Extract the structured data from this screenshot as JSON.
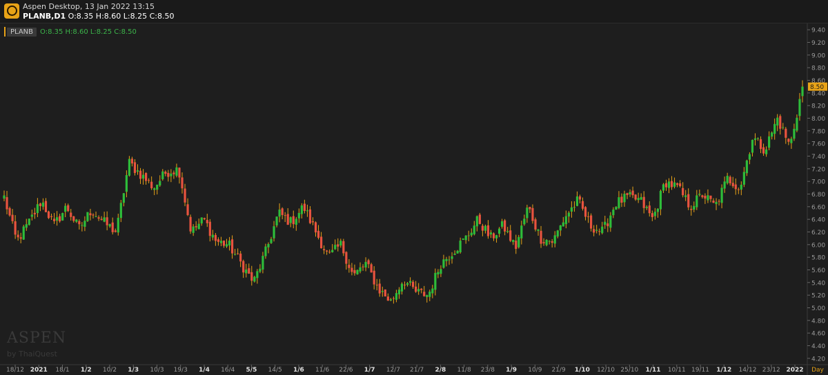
{
  "header": {
    "app_title": "Aspen Desktop, 13 Jan 2022 13:15",
    "symbol_timeframe": "PLANB,D1",
    "ohlc_text": "O:8.35 H:8.60 L:8.25 C:8.50"
  },
  "legend": {
    "symbol": "PLANB",
    "values": "O:8.35  H:8.60  L:8.25  C:8.50"
  },
  "watermark": {
    "main": "ASPEN",
    "sub": "by ThaiQuest"
  },
  "colors": {
    "up": "#2ebd3a",
    "down": "#e8533f",
    "wick": "#e8a317",
    "grid": "#2a2a2a",
    "axis_text": "#9a9a9a",
    "price_tag": "#e8a317",
    "background": "#1e1e1e"
  },
  "chart_data": {
    "type": "candlestick",
    "ylim": [
      4.1,
      9.5
    ],
    "y_ticks": [
      "4.20",
      "4.40",
      "4.60",
      "4.80",
      "5.00",
      "5.20",
      "5.40",
      "5.60",
      "5.80",
      "6.00",
      "6.20",
      "6.40",
      "6.60",
      "6.80",
      "7.00",
      "7.20",
      "7.40",
      "7.60",
      "7.80",
      "8.00",
      "8.20",
      "8.40",
      "8.60",
      "8.80",
      "9.00",
      "9.20",
      "9.40"
    ],
    "x_labels": [
      "18/12",
      "2021",
      "18/1",
      "1/2",
      "10/2",
      "1/3",
      "10/3",
      "19/3",
      "1/4",
      "16/4",
      "5/5",
      "14/5",
      "1/6",
      "11/6",
      "22/6",
      "1/7",
      "12/7",
      "21/7",
      "2/8",
      "11/8",
      "23/8",
      "1/9",
      "10/9",
      "21/9",
      "1/10",
      "12/10",
      "25/10",
      "1/11",
      "10/11",
      "19/11",
      "1/12",
      "14/12",
      "23/12",
      "2022"
    ],
    "x_label_bold": [
      false,
      true,
      false,
      true,
      false,
      true,
      false,
      false,
      true,
      false,
      true,
      false,
      true,
      false,
      false,
      true,
      false,
      false,
      true,
      false,
      false,
      true,
      false,
      false,
      true,
      false,
      false,
      true,
      false,
      false,
      true,
      false,
      false,
      true
    ],
    "x_axis_unit": "Day",
    "last_price": "8.50",
    "close_path": [
      6.75,
      6.05,
      6.35,
      6.7,
      6.3,
      6.6,
      6.25,
      6.55,
      6.35,
      6.2,
      7.3,
      7.1,
      6.9,
      7.15,
      7.2,
      6.2,
      6.4,
      6.05,
      6.0,
      5.7,
      5.4,
      5.9,
      6.5,
      6.35,
      6.6,
      6.2,
      5.8,
      6.0,
      5.5,
      5.7,
      5.3,
      5.1,
      5.45,
      5.25,
      5.2,
      5.7,
      5.9,
      6.1,
      6.4,
      6.1,
      6.3,
      5.95,
      6.6,
      6.1,
      6.05,
      6.45,
      6.7,
      6.3,
      6.2,
      6.65,
      6.75,
      6.7,
      6.4,
      7.0,
      6.9,
      6.6,
      6.8,
      6.6,
      7.05,
      6.9,
      7.7,
      7.5,
      8.0,
      7.55,
      8.5
    ],
    "n_candles": 288
  }
}
